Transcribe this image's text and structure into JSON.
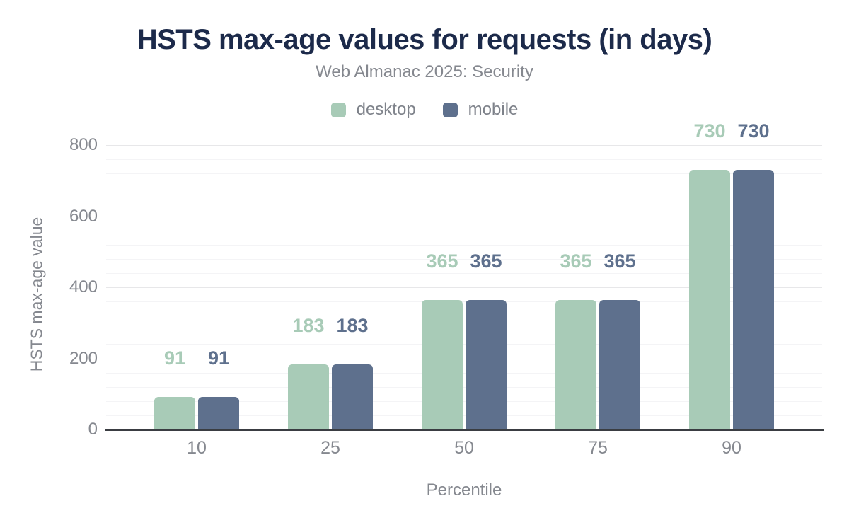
{
  "colors": {
    "title": "#1c2a4a",
    "muted_text": "#85888f",
    "axis_line": "#3a3d42",
    "grid_major": "#e7e7e9",
    "grid_minor": "#f4f4f6",
    "desktop": "#a8cbb7",
    "mobile": "#5e708d",
    "background": "#ffffff"
  },
  "chart_data": {
    "type": "bar",
    "title": "HSTS max-age values for requests (in days)",
    "subtitle": "Web Almanac 2025: Security",
    "categories": [
      "10",
      "25",
      "50",
      "75",
      "90"
    ],
    "series": [
      {
        "name": "desktop",
        "color": "#a8cbb7",
        "values": [
          91,
          183,
          365,
          365,
          730
        ]
      },
      {
        "name": "mobile",
        "color": "#5e708d",
        "values": [
          91,
          183,
          365,
          365,
          730
        ]
      }
    ],
    "data_labels": [
      [
        "91",
        "91"
      ],
      [
        "183",
        "183"
      ],
      [
        "365",
        "365"
      ],
      [
        "365",
        "365"
      ],
      [
        "730",
        "730"
      ]
    ],
    "xlabel": "Percentile",
    "ylabel": "HSTS max-age value",
    "ylim": [
      0,
      800
    ],
    "yticks": [
      0,
      200,
      400,
      600,
      800
    ],
    "ytick_interval": 200,
    "minor_tick_interval": 40,
    "grid": true,
    "legend_position": "top-center",
    "data_labels_visible": true
  }
}
